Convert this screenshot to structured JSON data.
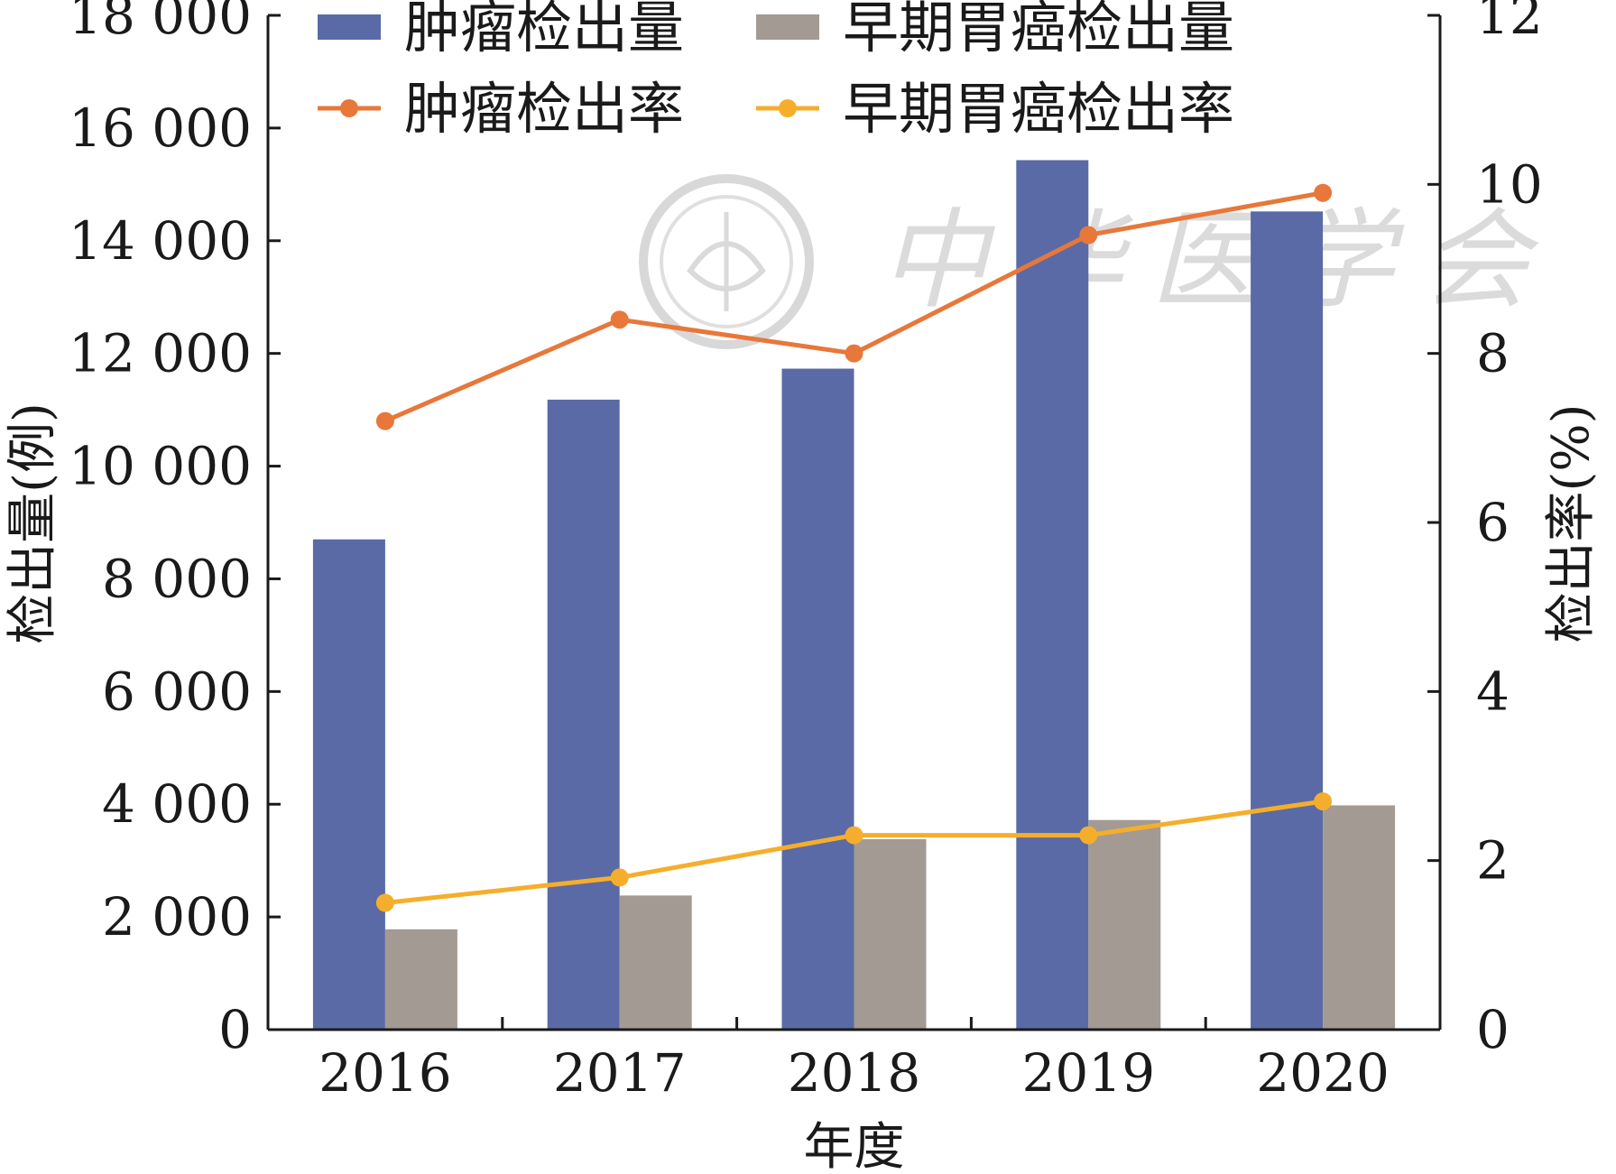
{
  "chart_data": {
    "type": "bar",
    "categories": [
      "2016",
      "2017",
      "2018",
      "2019",
      "2020"
    ],
    "xlabel": "年度",
    "ylabel_left": "检出量(例)",
    "ylabel_right": "检出率(%)",
    "ylim_left": [
      0,
      18000
    ],
    "ylim_right": [
      0,
      12
    ],
    "yticks_left": [
      0,
      2000,
      4000,
      6000,
      8000,
      10000,
      12000,
      14000,
      16000,
      18000
    ],
    "ytick_labels_left": [
      "0",
      "2 000",
      "4 000",
      "6 000",
      "8 000",
      "10 000",
      "12 000",
      "14 000",
      "16 000",
      "18 000"
    ],
    "yticks_right": [
      0,
      2,
      4,
      6,
      8,
      10,
      12
    ],
    "ytick_labels_right": [
      "0",
      "2",
      "4",
      "6",
      "8",
      "10",
      "12"
    ],
    "legend_position": "top",
    "grid": false,
    "bar_series": [
      {
        "name": "肿瘤检出量",
        "axis": "left",
        "color": "#5a6aa6",
        "values": [
          8700,
          11180,
          11730,
          15430,
          14520
        ]
      },
      {
        "name": "早期胃癌检出量",
        "axis": "left",
        "color": "#a39a94",
        "values": [
          1780,
          2380,
          3380,
          3720,
          3980
        ]
      }
    ],
    "line_series": [
      {
        "name": "肿瘤检出率",
        "axis": "right",
        "color": "#e8773a",
        "values": [
          7.2,
          8.4,
          8.0,
          9.4,
          9.9
        ]
      },
      {
        "name": "早期胃癌检出率",
        "axis": "right",
        "color": "#f5ae2c",
        "values": [
          1.5,
          1.8,
          2.3,
          2.3,
          2.7
        ]
      }
    ]
  },
  "watermark": {
    "text": "中华医学会"
  }
}
